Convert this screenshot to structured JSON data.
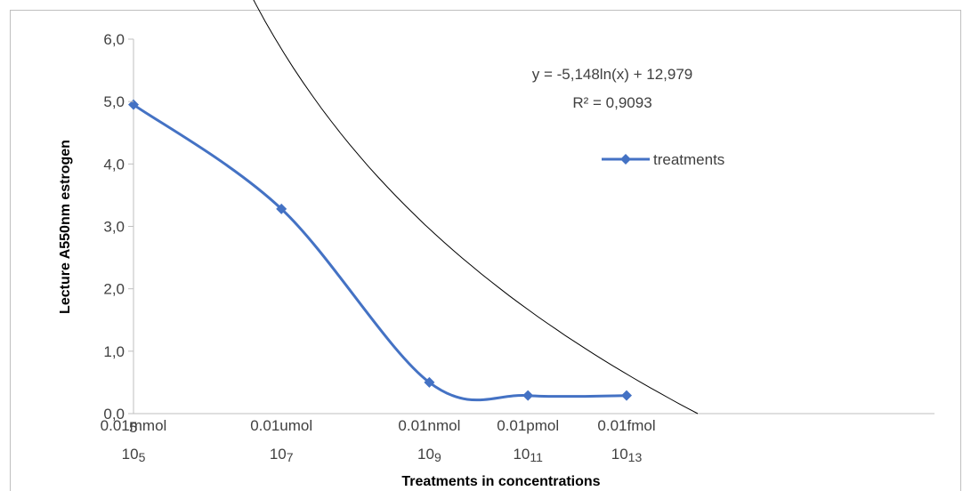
{
  "chart_data": {
    "type": "line",
    "title": "",
    "xlabel": "Treatments in concentrations",
    "ylabel": "Lecture A550nm estrogen",
    "ylim": [
      0,
      6
    ],
    "y_ticks": [
      "0,0",
      "1,0",
      "2,0",
      "3,0",
      "4,0",
      "5,0",
      "6,0"
    ],
    "x_origin_label": "5",
    "categories": [
      {
        "name": "0.01mmol",
        "exp_base": "10",
        "exp_sup": "5"
      },
      {
        "name": "0.01umol",
        "exp_base": "10",
        "exp_sup": "7"
      },
      {
        "name": "0.01nmol",
        "exp_base": "10",
        "exp_sup": "9"
      },
      {
        "name": "0.01pmol",
        "exp_base": "10",
        "exp_sup": "11"
      },
      {
        "name": "0.01fmol",
        "exp_base": "10",
        "exp_sup": "13"
      }
    ],
    "series": [
      {
        "name": "treatments",
        "x": [
          1,
          4,
          7,
          9,
          11
        ],
        "values": [
          4.95,
          3.28,
          0.5,
          0.29,
          0.29
        ],
        "color": "#4472c4"
      }
    ],
    "trendline": {
      "type": "logarithmic",
      "a": -5.148,
      "b": 12.979,
      "color": "#000000"
    },
    "equation": "y = -5,148ln(x) + 12,979",
    "r_squared": "R² = 0,9093",
    "grid": false,
    "legend_position": "right"
  }
}
